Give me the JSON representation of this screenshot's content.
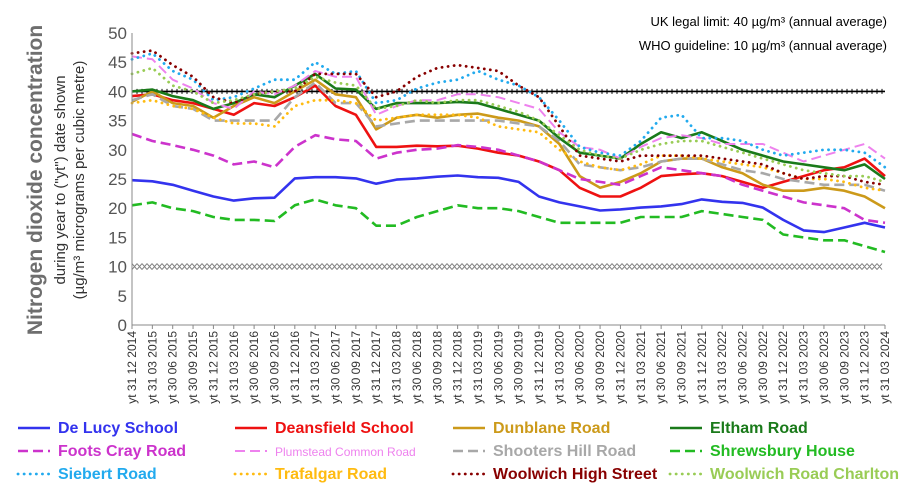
{
  "chart_data": {
    "type": "line",
    "ylabel": "Nitrogen dioxide concentration",
    "ylabel_sub1": "during year to (\"yt\") date shown",
    "ylabel_sub2": "(µg/m³ micrograms per cubic metre)",
    "ylim": [
      0,
      50
    ],
    "yticks": [
      "0",
      "5",
      "10",
      "15",
      "20",
      "25",
      "30",
      "35",
      "40",
      "45",
      "50"
    ],
    "grid": false,
    "legend_position": "bottom",
    "notes": [
      "UK legal limit:  40 µg/m³  (annual average)",
      "WHO guideline:  10 µg/m³  (annual average)"
    ],
    "reference_lines": [
      {
        "value": 40,
        "style": "plus-line",
        "color": "#000000"
      },
      {
        "value": 10,
        "style": "cross-line",
        "color": "#808080"
      }
    ],
    "x": [
      "yt 31 12 2014",
      "yt 31 03 2015",
      "yt 30 06 2015",
      "yt 30 09 2015",
      "yt 31 12 2015",
      "yt 31 03 2016",
      "yt 30 06 2016",
      "yt 30 09 2016",
      "yt 31 12 2016",
      "yt 31 03 2017",
      "yt 30 06 2017",
      "yt 30 09 2017",
      "yt 31 12 2017",
      "yt 31 03 2018",
      "yt 30 06 2018",
      "yt 30 09 2018",
      "yt 31 12 2018",
      "yt 31 03 2019",
      "yt 30 06 2019",
      "yt 30 09 2019",
      "yt 31 12 2019",
      "yt 31 03 2020",
      "yt 30 06 2020",
      "yt 30 09 2020",
      "yt 31 12 2020",
      "yt 31 03 2021",
      "yt 30 06 2021",
      "yt 30 09 2021",
      "yt 31 12 2021",
      "yt 31 03 2022",
      "yt 30 06 2022",
      "yt 30 09 2022",
      "yt 31 12 2022",
      "yt 31 03 2023",
      "yt 30 06 2023",
      "yt 30 09 2023",
      "yt 31 12 2023",
      "yt 31 03 2024"
    ],
    "series": [
      {
        "name": "De Lucy School",
        "color": "#3333ee",
        "dash": "solid",
        "width": 2.6,
        "values": [
          24.8,
          24.6,
          24.0,
          23.0,
          22.0,
          21.3,
          21.7,
          21.8,
          25.1,
          25.3,
          25.3,
          25.1,
          24.2,
          24.9,
          25.1,
          25.4,
          25.6,
          25.3,
          25.2,
          24.5,
          22.0,
          21.0,
          20.3,
          19.6,
          19.8,
          20.1,
          20.3,
          20.7,
          21.5,
          21.1,
          20.9,
          20.1,
          18.0,
          16.2,
          15.9,
          16.7,
          17.5,
          16.7
        ]
      },
      {
        "name": "Deansfield School",
        "color": "#ee1111",
        "dash": "solid",
        "width": 2.6,
        "values": [
          39.2,
          39.5,
          38.5,
          38.0,
          37.0,
          36.0,
          38.0,
          37.5,
          39.0,
          41.0,
          37.5,
          36.0,
          30.5,
          30.5,
          30.7,
          30.6,
          30.7,
          30.2,
          29.5,
          29.0,
          28.0,
          26.5,
          23.5,
          22.0,
          22.0,
          23.5,
          25.5,
          25.8,
          26.0,
          25.5,
          24.5,
          23.5,
          24.5,
          25.5,
          26.5,
          27.0,
          28.5,
          25.5
        ]
      },
      {
        "name": "Dunblane Road",
        "color": "#cc9a1a",
        "dash": "solid",
        "width": 2.6,
        "values": [
          38.2,
          40.0,
          38.0,
          37.5,
          35.5,
          37.5,
          39.0,
          38.0,
          40.0,
          42.0,
          39.5,
          39.0,
          33.5,
          35.5,
          36.0,
          35.5,
          36.0,
          36.2,
          35.5,
          35.0,
          34.0,
          31.0,
          25.5,
          23.5,
          24.5,
          26.0,
          28.0,
          28.5,
          28.5,
          27.0,
          26.0,
          24.0,
          23.0,
          23.0,
          23.5,
          23.0,
          22.0,
          20.0
        ]
      },
      {
        "name": "Eltham Road",
        "color": "#1a7a1a",
        "dash": "solid",
        "width": 2.6,
        "values": [
          40.0,
          40.3,
          39.2,
          38.5,
          37.0,
          38.0,
          39.5,
          39.0,
          41.0,
          43.0,
          40.5,
          40.3,
          37.0,
          38.0,
          38.0,
          38.0,
          38.2,
          38.0,
          37.0,
          36.0,
          35.0,
          32.0,
          29.5,
          29.0,
          28.5,
          31.0,
          33.0,
          32.0,
          33.0,
          31.5,
          30.0,
          29.0,
          28.0,
          27.5,
          27.0,
          26.5,
          27.5,
          25.0
        ]
      },
      {
        "name": "Foots Cray Road",
        "color": "#cc33cc",
        "dash": "long",
        "width": 2.6,
        "values": [
          32.7,
          31.5,
          30.8,
          30.0,
          29.0,
          27.5,
          28.0,
          27.0,
          30.5,
          32.5,
          31.8,
          31.5,
          28.5,
          29.5,
          30.0,
          30.2,
          30.8,
          30.5,
          30.0,
          29.0,
          28.0,
          26.5,
          25.0,
          24.5,
          24.0,
          25.5,
          27.0,
          26.5,
          26.0,
          25.5,
          24.0,
          23.0,
          22.0,
          21.0,
          20.5,
          20.0,
          18.0,
          17.5
        ]
      },
      {
        "name": "Plumstead Common Road",
        "color": "#ee82ee",
        "dash": "long",
        "width": 2.0,
        "values": [
          46.0,
          45.5,
          42.0,
          40.5,
          38.0,
          37.0,
          40.0,
          39.5,
          41.0,
          43.5,
          42.5,
          42.5,
          36.0,
          37.5,
          38.5,
          38.5,
          39.5,
          39.5,
          39.0,
          38.0,
          37.0,
          33.0,
          30.5,
          30.0,
          28.5,
          30.5,
          32.0,
          32.5,
          32.0,
          31.0,
          31.0,
          31.0,
          29.5,
          28.0,
          29.0,
          30.0,
          31.0,
          28.5
        ]
      },
      {
        "name": "Shooters Hill Road",
        "color": "#a8a8a8",
        "dash": "long",
        "width": 2.6,
        "values": [
          38.5,
          39.5,
          37.5,
          37.0,
          35.0,
          35.0,
          35.0,
          35.0,
          39.0,
          41.5,
          38.0,
          38.0,
          34.0,
          34.5,
          35.0,
          35.0,
          35.0,
          35.0,
          35.0,
          34.5,
          34.0,
          31.5,
          27.5,
          27.0,
          26.5,
          27.0,
          28.0,
          28.5,
          28.5,
          27.5,
          26.5,
          26.0,
          25.0,
          24.5,
          24.0,
          24.0,
          24.0,
          23.0
        ]
      },
      {
        "name": "Shrewsbury House",
        "color": "#22bb22",
        "dash": "long",
        "width": 2.6,
        "values": [
          20.5,
          21.0,
          20.0,
          19.5,
          18.5,
          18.0,
          18.0,
          17.8,
          20.5,
          21.5,
          20.5,
          20.0,
          17.0,
          17.0,
          18.5,
          19.5,
          20.5,
          20.0,
          20.0,
          19.5,
          18.5,
          17.5,
          17.5,
          17.5,
          17.5,
          18.5,
          18.5,
          18.5,
          19.5,
          19.0,
          18.5,
          18.0,
          15.5,
          15.0,
          14.5,
          14.5,
          13.5,
          12.5
        ]
      },
      {
        "name": "Siebert Road",
        "color": "#22aaee",
        "dash": "dot",
        "width": 2.8,
        "values": [
          45.5,
          46.5,
          43.5,
          42.0,
          38.5,
          39.0,
          40.5,
          42.0,
          42.0,
          45.0,
          43.0,
          43.5,
          38.0,
          38.5,
          40.5,
          41.5,
          42.0,
          43.5,
          42.0,
          41.0,
          39.0,
          35.0,
          30.5,
          29.5,
          29.0,
          31.5,
          35.5,
          36.0,
          32.0,
          32.0,
          31.5,
          30.0,
          29.0,
          29.5,
          30.0,
          30.0,
          29.5,
          27.0
        ]
      },
      {
        "name": "Trafalgar Road",
        "color": "#ffbb11",
        "dash": "dot",
        "width": 2.8,
        "values": [
          38.0,
          38.5,
          37.5,
          37.0,
          35.5,
          34.5,
          34.5,
          34.0,
          37.5,
          38.5,
          38.5,
          38.0,
          35.0,
          35.5,
          36.0,
          36.0,
          36.0,
          35.5,
          34.0,
          33.5,
          33.0,
          30.0,
          28.0,
          27.0,
          26.5,
          27.5,
          29.0,
          29.0,
          28.5,
          28.0,
          27.5,
          27.0,
          26.0,
          25.0,
          25.0,
          24.5,
          23.5,
          23.0
        ]
      },
      {
        "name": "Woolwich High Street",
        "color": "#880000",
        "dash": "dot",
        "width": 2.8,
        "values": [
          46.5,
          47.0,
          44.5,
          42.5,
          39.0,
          38.0,
          39.5,
          40.0,
          40.0,
          43.0,
          43.0,
          43.0,
          39.0,
          40.0,
          42.5,
          44.0,
          44.5,
          44.0,
          43.5,
          41.0,
          39.0,
          34.0,
          29.0,
          28.5,
          28.0,
          29.0,
          29.0,
          29.0,
          29.0,
          28.5,
          28.0,
          27.5,
          26.0,
          25.0,
          25.5,
          25.5,
          24.5,
          24.0
        ]
      },
      {
        "name": "Woolwich Road Charlton",
        "color": "#99cc55",
        "dash": "dot",
        "width": 2.8,
        "values": [
          43.0,
          44.0,
          41.0,
          40.0,
          38.0,
          38.5,
          39.5,
          40.0,
          40.5,
          42.5,
          41.5,
          41.0,
          37.0,
          37.5,
          38.5,
          38.0,
          38.5,
          38.5,
          37.5,
          36.5,
          35.0,
          32.5,
          30.0,
          29.0,
          28.5,
          30.0,
          31.0,
          31.5,
          31.5,
          30.5,
          29.5,
          28.5,
          27.5,
          26.5,
          26.0,
          25.5,
          25.5,
          24.5
        ]
      }
    ]
  }
}
